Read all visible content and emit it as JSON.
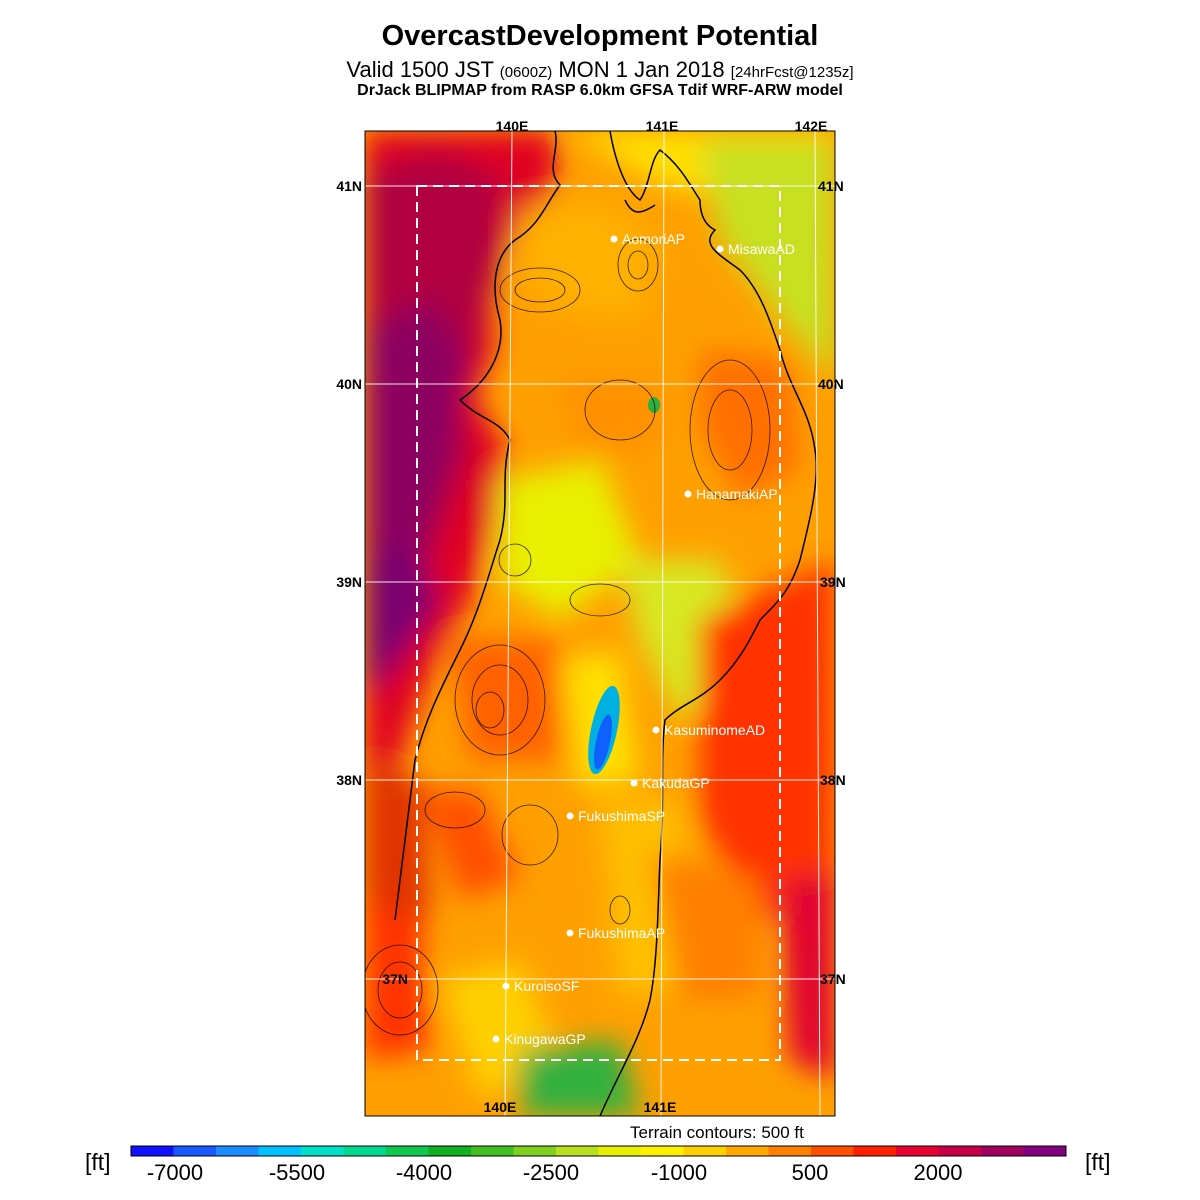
{
  "header": {
    "title": "OvercastDevelopment Potential",
    "valid_prefix": "Valid 1500 JST ",
    "utc": "(0600Z)",
    "valid_date": " MON 1 Jan 2018 ",
    "forecast": "[24hrFcst@1235z]",
    "model": "DrJack BLIPMAP from RASP 6.0km GFSA Tdif WRF-ARW model"
  },
  "map": {
    "lon_top": [
      "140E",
      "141E",
      "142E"
    ],
    "lon_bottom": [
      "140E",
      "141E"
    ],
    "lat_left": [
      "41N",
      "40N",
      "39N",
      "38N",
      "37N"
    ],
    "lat_right": [
      "41N",
      "40N",
      "39N",
      "38N",
      "37N"
    ],
    "stations": [
      {
        "name": "AomoriAP"
      },
      {
        "name": "MisawaAD"
      },
      {
        "name": "HanamakiAP"
      },
      {
        "name": "KasuminomeAD"
      },
      {
        "name": "KakudaGP"
      },
      {
        "name": "FukushimaSP"
      },
      {
        "name": "FukushimaAP"
      },
      {
        "name": "KuroisoSF"
      },
      {
        "name": "KinugawaGP"
      }
    ],
    "terrain_note": "Terrain contours: 500 ft"
  },
  "colorbar": {
    "unit": "[ft]",
    "ticks": [
      "-7000",
      "-5500",
      "-4000",
      "-2500",
      "-1000",
      "500",
      "2000"
    ],
    "colors": [
      "#1010ff",
      "#1858ff",
      "#1a8cff",
      "#00c0ff",
      "#00e0c8",
      "#00d890",
      "#10c850",
      "#10b020",
      "#40c020",
      "#80d020",
      "#b8e020",
      "#e8f000",
      "#fff000",
      "#ffd000",
      "#ffa800",
      "#ff8000",
      "#ff5000",
      "#ff2000",
      "#e80030",
      "#c80048",
      "#a00060",
      "#800080"
    ]
  }
}
